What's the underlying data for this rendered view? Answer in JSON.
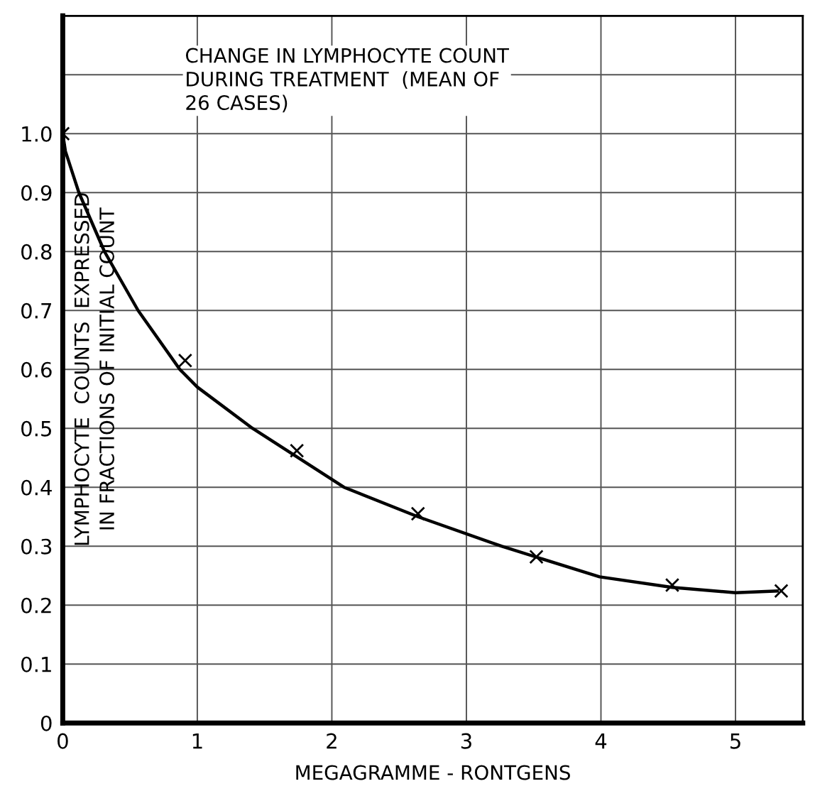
{
  "chart_data": {
    "type": "scatter",
    "title": "CHANGE IN LYMPHOCYTE COUNT\nDURING TREATMENT  (MEAN OF\n26 CASES)",
    "xlabel": "MEGAGRAMME - RONTGENS",
    "ylabel": "LYMPHOCYTE  COUNTS  EXPRESSED\nIN FRACTIONS OF INITIAL COUNT",
    "series": [
      {
        "color": "#000000",
        "marker": "cross",
        "x": [
          0,
          0.91,
          1.74,
          2.64,
          3.52,
          4.53,
          5.34
        ],
        "values": [
          1.0,
          0.615,
          0.462,
          0.355,
          0.282,
          0.234,
          0.224
        ]
      },
      {
        "type": "line",
        "color": "#000000",
        "marker": "none",
        "line_style": "solid",
        "x": [
          0,
          0.02,
          0.12,
          0.31,
          0.56,
          0.87,
          1.0,
          1.41,
          2.09,
          2.64,
          3.26,
          3.99,
          4.53,
          5.0,
          5.31
        ],
        "values": [
          1.0,
          0.97,
          0.9,
          0.8,
          0.7,
          0.6,
          0.57,
          0.5,
          0.4,
          0.35,
          0.3,
          0.248,
          0.23,
          0.221,
          0.224
        ]
      }
    ],
    "xlim": [
      0,
      5.5
    ],
    "xticks": [
      0,
      1,
      2,
      3,
      4,
      5
    ],
    "ylim": [
      0,
      1.2
    ],
    "yticks": [
      0,
      0.1,
      0.2,
      0.3,
      0.4,
      0.5,
      0.6,
      0.7,
      0.8,
      0.9,
      {
        "value": 1.0,
        "label": "1.0"
      },
      {
        "value": 1.1,
        "label": null
      },
      {
        "value": 1.2,
        "label": null
      }
    ],
    "grid": true
  }
}
